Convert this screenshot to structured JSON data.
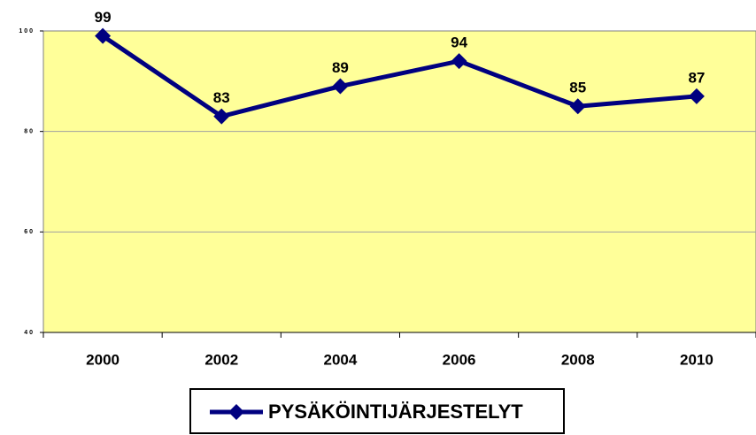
{
  "chart_data": {
    "type": "line",
    "categories": [
      "2000",
      "2002",
      "2004",
      "2006",
      "2008",
      "2010"
    ],
    "series": [
      {
        "name": "PYSÄKÖINTIJÄRJESTELYT",
        "color": "#000080",
        "values": [
          99,
          83,
          89,
          94,
          85,
          87
        ]
      }
    ],
    "ylim": [
      40,
      100
    ],
    "yticks": [
      40,
      60,
      80,
      100
    ],
    "grid": true,
    "plot_background": "#ffff99"
  }
}
